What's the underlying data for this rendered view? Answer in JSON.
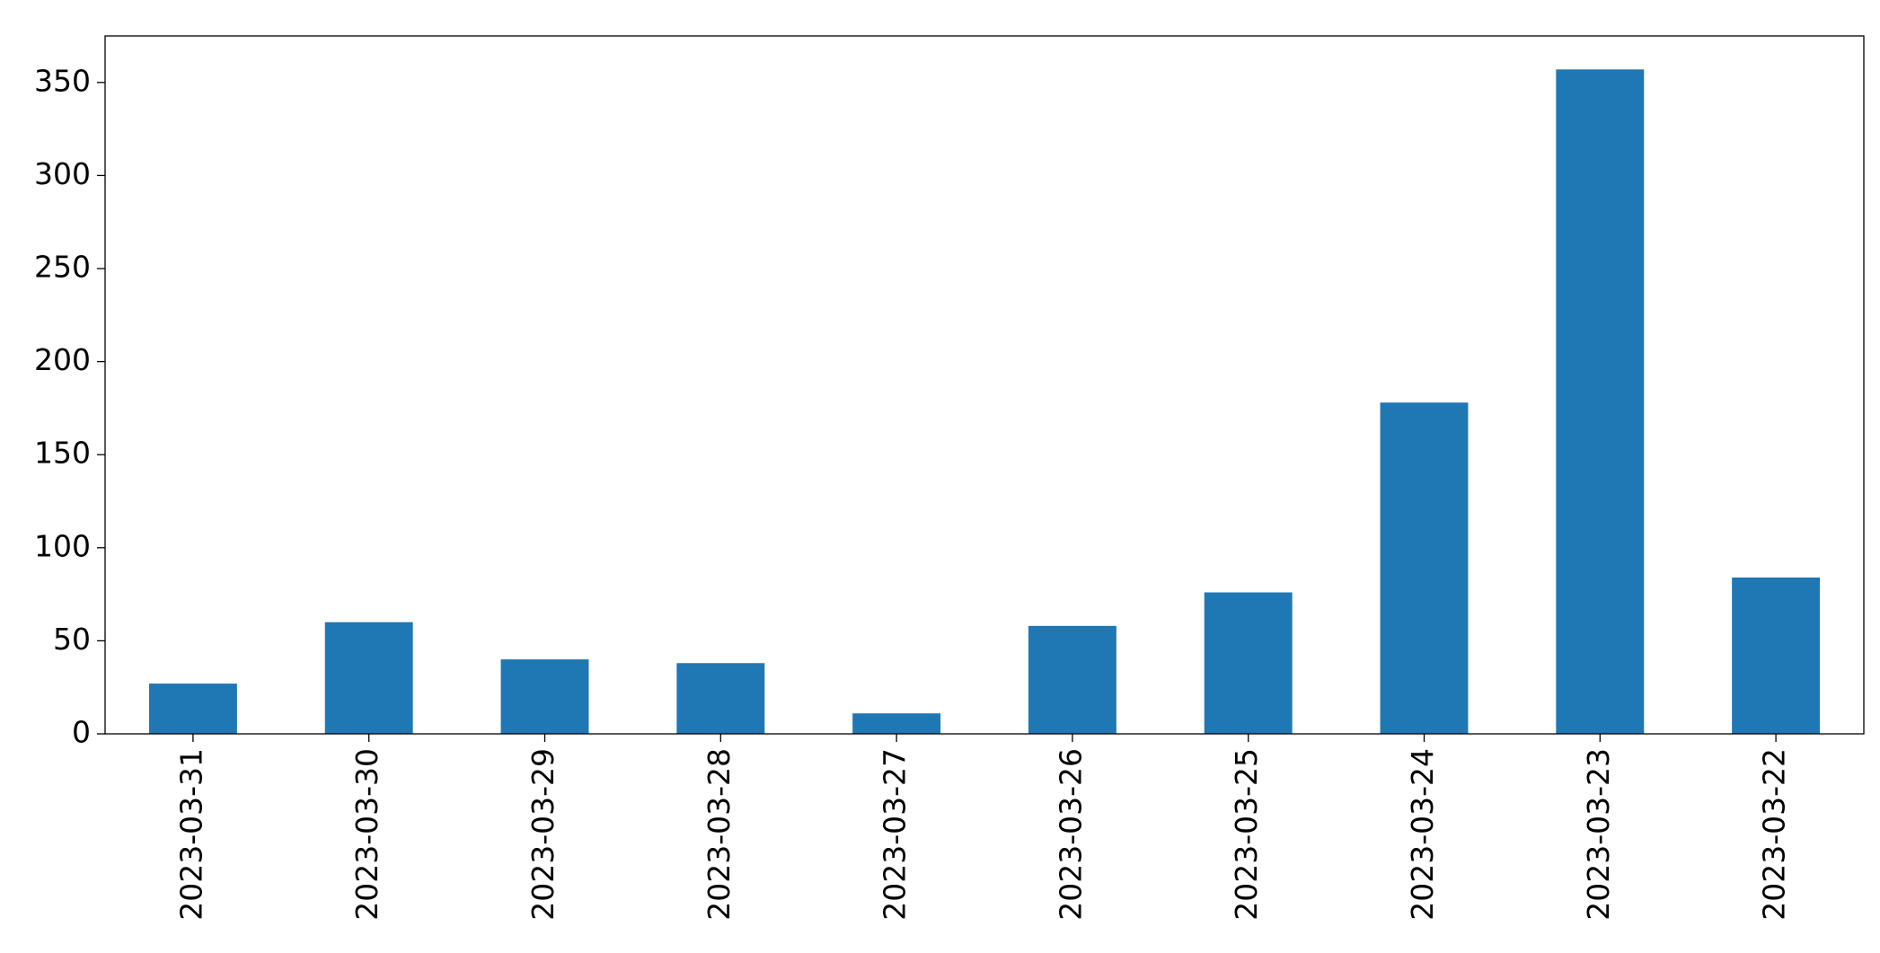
{
  "chart_data": {
    "type": "bar",
    "categories": [
      "2023-03-31",
      "2023-03-30",
      "2023-03-29",
      "2023-03-28",
      "2023-03-27",
      "2023-03-26",
      "2023-03-25",
      "2023-03-24",
      "2023-03-23",
      "2023-03-22"
    ],
    "values": [
      27,
      60,
      40,
      38,
      11,
      58,
      76,
      178,
      357,
      84
    ],
    "color": "#1f77b4",
    "ylim": [
      0,
      375
    ],
    "yticks": [
      0,
      50,
      100,
      150,
      200,
      250,
      300,
      350
    ],
    "grid": false
  }
}
